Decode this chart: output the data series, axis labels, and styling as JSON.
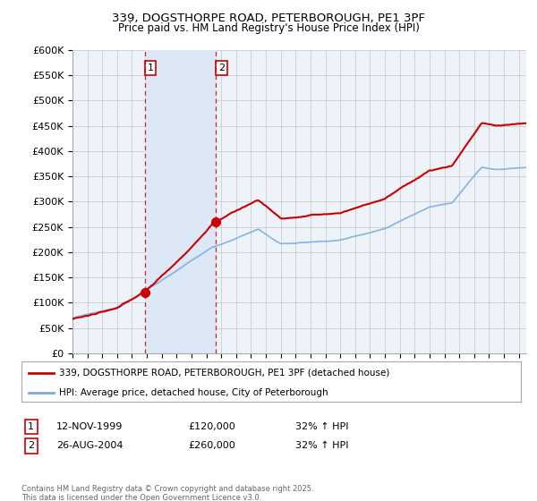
{
  "title_line1": "339, DOGSTHORPE ROAD, PETERBOROUGH, PE1 3PF",
  "title_line2": "Price paid vs. HM Land Registry's House Price Index (HPI)",
  "ylabel_ticks": [
    "£0",
    "£50K",
    "£100K",
    "£150K",
    "£200K",
    "£250K",
    "£300K",
    "£350K",
    "£400K",
    "£450K",
    "£500K",
    "£550K",
    "£600K"
  ],
  "ytick_values": [
    0,
    50000,
    100000,
    150000,
    200000,
    250000,
    300000,
    350000,
    400000,
    450000,
    500000,
    550000,
    600000
  ],
  "hpi_color": "#7aace0",
  "price_color": "#cc0000",
  "shade_color": "#dce8f5",
  "marker1_date_x": 1999.87,
  "marker1_price": 120000,
  "marker2_date_x": 2004.65,
  "marker2_price": 260000,
  "annotation1": [
    "1",
    "12-NOV-1999",
    "£120,000",
    "32% ↑ HPI"
  ],
  "annotation2": [
    "2",
    "26-AUG-2004",
    "£260,000",
    "32% ↑ HPI"
  ],
  "legend_label1": "339, DOGSTHORPE ROAD, PETERBOROUGH, PE1 3PF (detached house)",
  "legend_label2": "HPI: Average price, detached house, City of Peterborough",
  "footnote": "Contains HM Land Registry data © Crown copyright and database right 2025.\nThis data is licensed under the Open Government Licence v3.0.",
  "xmin": 1995,
  "xmax": 2025.5,
  "ymin": 0,
  "ymax": 600000,
  "vline1_x": 1999.87,
  "vline2_x": 2004.65,
  "bg_color": "#ffffff",
  "grid_color": "#cccccc",
  "plot_bg_color": "#eef3fa"
}
